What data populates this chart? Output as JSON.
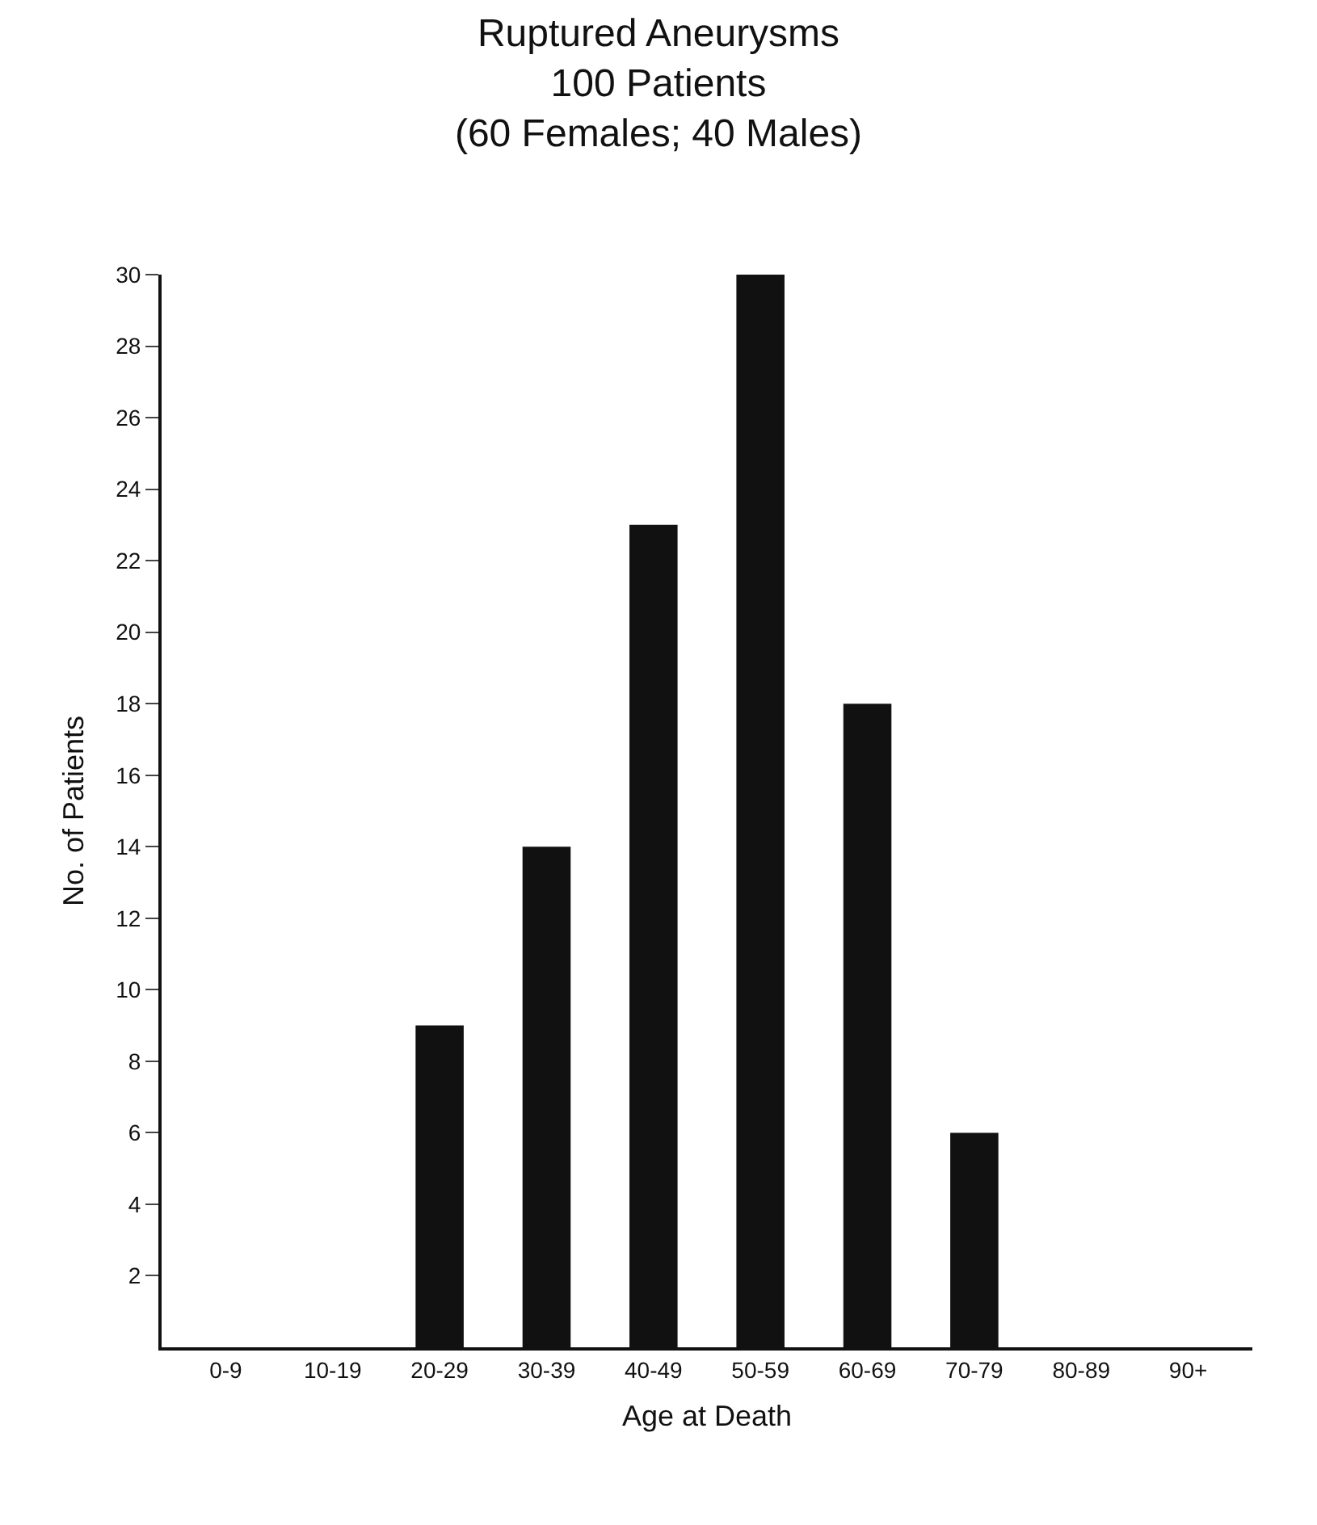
{
  "chart_data": {
    "type": "bar",
    "title": "Ruptured Aneurysms",
    "subtitle": "100 Patients\n(60 Females; 40 Males)",
    "xlabel": "Age at Death",
    "ylabel": "No. of Patients",
    "categories": [
      "0-9",
      "10-19",
      "20-29",
      "30-39",
      "40-49",
      "50-59",
      "60-69",
      "70-79",
      "80-89",
      "90+"
    ],
    "values": [
      0,
      0,
      9,
      14,
      23,
      30,
      18,
      6,
      0,
      0
    ],
    "color": "#111111",
    "ylim": [
      0,
      30
    ],
    "yticks": [
      2,
      4,
      6,
      8,
      10,
      12,
      14,
      16,
      18,
      20,
      22,
      24,
      26,
      28,
      30
    ]
  }
}
